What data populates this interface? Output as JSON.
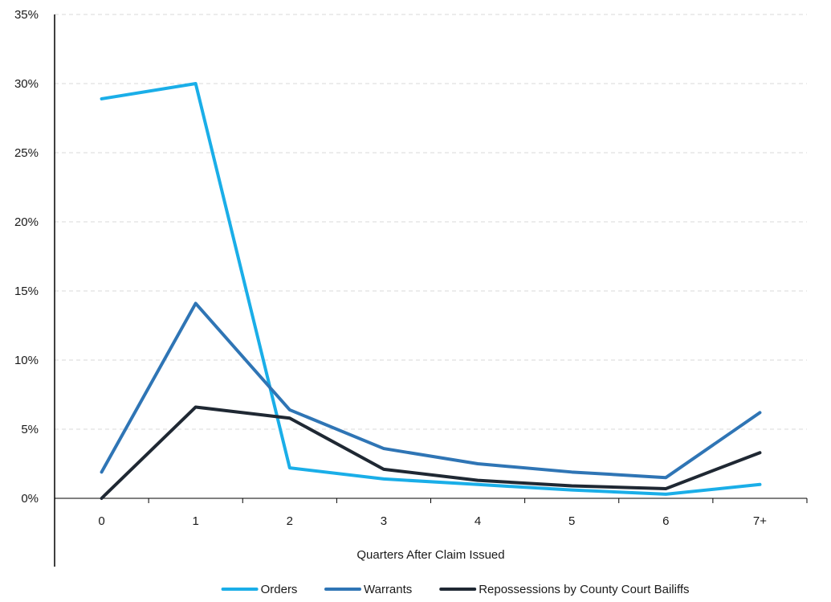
{
  "chart_data": {
    "type": "line",
    "title": "",
    "xlabel": "Quarters After Claim Issued",
    "ylabel": "",
    "categories": [
      "0",
      "1",
      "2",
      "3",
      "4",
      "5",
      "6",
      "7+"
    ],
    "ylim": [
      0,
      35
    ],
    "yticks": [
      0,
      5,
      10,
      15,
      20,
      25,
      30,
      35
    ],
    "ytick_labels": [
      "0%",
      "5%",
      "10%",
      "15%",
      "20%",
      "25%",
      "30%",
      "35%"
    ],
    "grid": "horizontal dashed",
    "legend_position": "bottom",
    "series": [
      {
        "name": "Orders",
        "color": "#1aaee8",
        "values": [
          28.9,
          30.0,
          2.2,
          1.4,
          1.0,
          0.6,
          0.3,
          1.0
        ]
      },
      {
        "name": "Warrants",
        "color": "#2f75b5",
        "values": [
          1.9,
          14.1,
          6.4,
          3.6,
          2.5,
          1.9,
          1.5,
          6.2
        ]
      },
      {
        "name": "Repossessions by County Court Bailiffs",
        "color": "#1f2833",
        "values": [
          0.0,
          6.6,
          5.8,
          2.1,
          1.3,
          0.9,
          0.7,
          3.3
        ]
      }
    ]
  }
}
